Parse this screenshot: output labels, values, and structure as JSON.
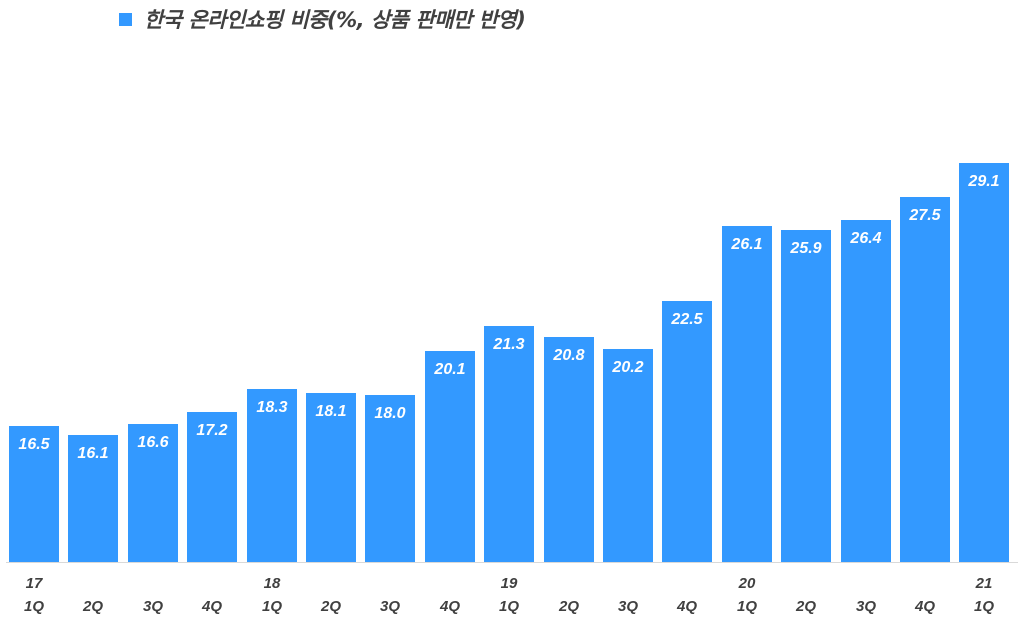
{
  "legend": {
    "label": "한국 온라인쇼핑 비중(%, 상품 판매만 반영)",
    "color": "#3399FF"
  },
  "chart_data": {
    "type": "bar",
    "title": "",
    "legend": [
      "한국 온라인쇼핑 비중(%, 상품 판매만 반영)"
    ],
    "legend_position": "top-left",
    "categories": [
      "17 1Q",
      "2Q",
      "3Q",
      "4Q",
      "18 1Q",
      "2Q",
      "3Q",
      "4Q",
      "19 1Q",
      "2Q",
      "3Q",
      "4Q",
      "20 1Q",
      "2Q",
      "3Q",
      "4Q",
      "21 1Q"
    ],
    "year_labels": [
      "17",
      "",
      "",
      "",
      "18",
      "",
      "",
      "",
      "19",
      "",
      "",
      "",
      "20",
      "",
      "",
      "",
      "21"
    ],
    "quarter_labels": [
      "1Q",
      "2Q",
      "3Q",
      "4Q",
      "1Q",
      "2Q",
      "3Q",
      "4Q",
      "1Q",
      "2Q",
      "3Q",
      "4Q",
      "1Q",
      "2Q",
      "3Q",
      "4Q",
      "1Q"
    ],
    "series": [
      {
        "name": "한국 온라인쇼핑 비중(%, 상품 판매만 반영)",
        "color": "#3399FF",
        "values": [
          16.5,
          16.1,
          16.6,
          17.2,
          18.3,
          18.1,
          18.0,
          20.1,
          21.3,
          20.8,
          20.2,
          22.5,
          26.1,
          25.9,
          26.4,
          27.5,
          29.1
        ]
      }
    ],
    "value_labels": [
      "16.5",
      "16.1",
      "16.6",
      "17.2",
      "18.3",
      "18.1",
      "18.0",
      "20.1",
      "21.3",
      "20.8",
      "20.2",
      "22.5",
      "26.1",
      "25.9",
      "26.4",
      "27.5",
      "29.1"
    ],
    "xlabel": "",
    "ylabel": "",
    "ylim": [
      10,
      31
    ],
    "grid": false
  }
}
